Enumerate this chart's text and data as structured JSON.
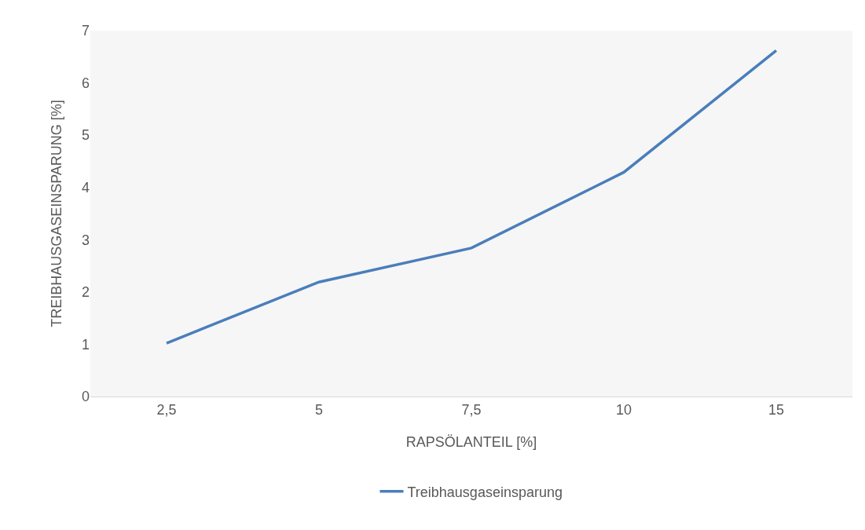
{
  "chart_data": {
    "type": "line",
    "xlabel": "RAPSÖLANTEIL [%]",
    "ylabel": "TREIBHAUSGASEINSPARUNG [%]",
    "categories": [
      "2,5",
      "5",
      "7,5",
      "10",
      "15"
    ],
    "series": [
      {
        "name": "Treibhausgaseinsparung",
        "color": "#4a7ebb",
        "values": [
          1.02,
          2.19,
          2.84,
          4.29,
          6.62
        ]
      }
    ],
    "ylim": [
      0,
      7
    ],
    "yticks": [
      0,
      1,
      2,
      3,
      4,
      5,
      6,
      7
    ],
    "grid": false,
    "legend": "bottom",
    "marker": "none",
    "line_style": "solid"
  }
}
